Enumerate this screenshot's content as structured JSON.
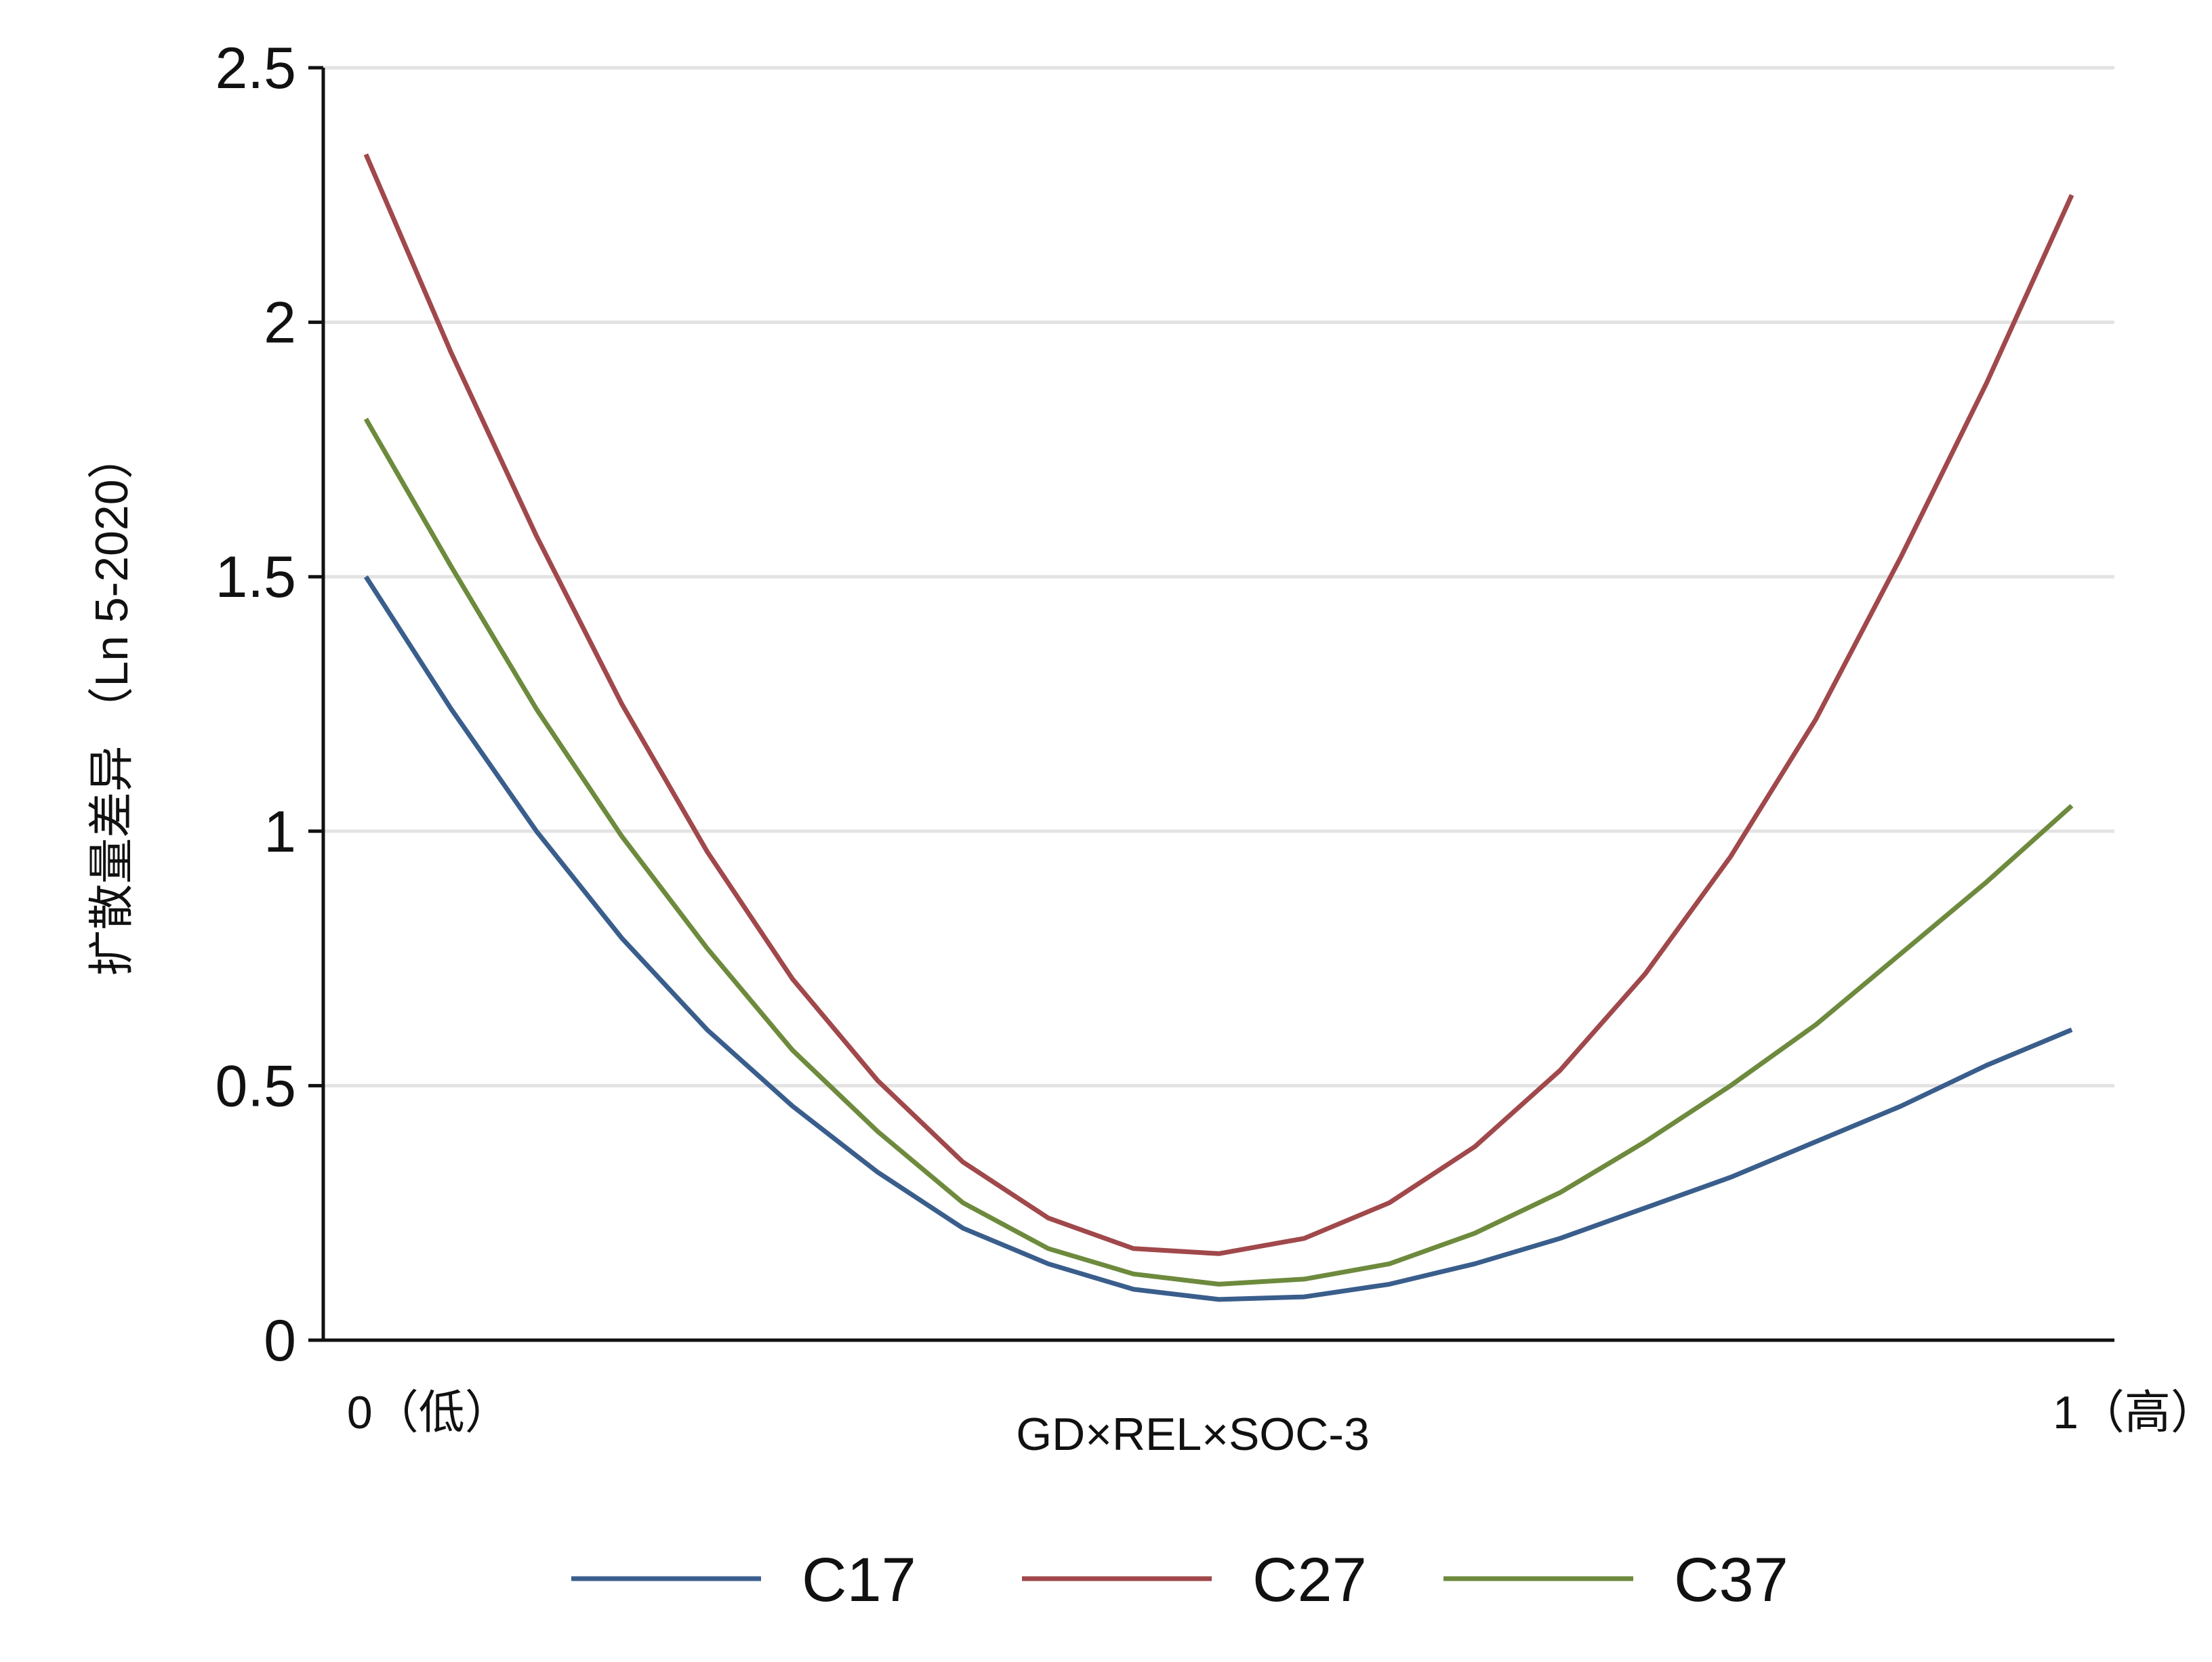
{
  "chart_data": {
    "type": "line",
    "title": "",
    "xlabel": "GD×REL×SOC-3",
    "ylabel": "扩散量差异 （Ln 5-2020）",
    "xlim": [
      -0.025,
      1.025
    ],
    "ylim": [
      0,
      2.5
    ],
    "x_ticks": [
      {
        "value": 0,
        "label": "0（低）"
      },
      {
        "value": 1,
        "label": "1（高）"
      }
    ],
    "y_ticks": [
      {
        "value": 0,
        "label": "0"
      },
      {
        "value": 0.5,
        "label": "0.5"
      },
      {
        "value": 1,
        "label": "1"
      },
      {
        "value": 1.5,
        "label": "1.5"
      },
      {
        "value": 2,
        "label": "2"
      },
      {
        "value": 2.5,
        "label": "2.5"
      }
    ],
    "grid": "horizontal",
    "legend_position": "bottom",
    "series": [
      {
        "name": "C17",
        "color": "#3a5e8c",
        "x": [
          0,
          0.05,
          0.1,
          0.15,
          0.2,
          0.25,
          0.3,
          0.35,
          0.4,
          0.45,
          0.5,
          0.55,
          0.6,
          0.65,
          0.7,
          0.75,
          0.8,
          0.85,
          0.9,
          0.95,
          1.0
        ],
        "values": [
          1.5,
          1.24,
          1.0,
          0.79,
          0.61,
          0.46,
          0.33,
          0.22,
          0.15,
          0.1,
          0.08,
          0.085,
          0.11,
          0.15,
          0.2,
          0.26,
          0.32,
          0.39,
          0.46,
          0.54,
          0.61
        ]
      },
      {
        "name": "C27",
        "color": "#a0484b",
        "x": [
          0,
          0.05,
          0.1,
          0.15,
          0.2,
          0.25,
          0.3,
          0.35,
          0.4,
          0.45,
          0.5,
          0.55,
          0.6,
          0.65,
          0.7,
          0.75,
          0.8,
          0.85,
          0.9,
          0.95,
          1.0
        ],
        "values": [
          2.33,
          1.94,
          1.58,
          1.25,
          0.96,
          0.71,
          0.51,
          0.35,
          0.24,
          0.18,
          0.17,
          0.2,
          0.27,
          0.38,
          0.53,
          0.72,
          0.95,
          1.22,
          1.54,
          1.88,
          2.25
        ]
      },
      {
        "name": "C37",
        "color": "#6d8a3d",
        "x": [
          0,
          0.05,
          0.1,
          0.15,
          0.2,
          0.25,
          0.3,
          0.35,
          0.4,
          0.45,
          0.5,
          0.55,
          0.6,
          0.65,
          0.7,
          0.75,
          0.8,
          0.85,
          0.9,
          0.95,
          1.0
        ],
        "values": [
          1.81,
          1.52,
          1.24,
          0.99,
          0.77,
          0.57,
          0.41,
          0.27,
          0.18,
          0.13,
          0.11,
          0.12,
          0.15,
          0.21,
          0.29,
          0.39,
          0.5,
          0.62,
          0.76,
          0.9,
          1.05
        ]
      }
    ]
  }
}
